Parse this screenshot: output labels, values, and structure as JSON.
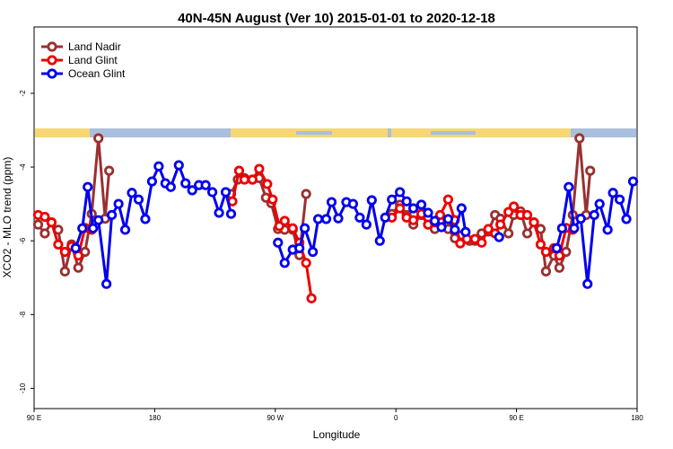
{
  "chart_data": {
    "type": "line",
    "title": "40N-45N August (Ver 10)   2015-01-01 to 2020-12-18",
    "x_label": "Longitude",
    "y_label": "XCO2 - MLO trend (ppm)",
    "xlim": [
      90,
      540
    ],
    "ylim": [
      -10.55,
      -0.2
    ],
    "xticks": [
      {
        "value": 90,
        "label": "90 E"
      },
      {
        "value": 180,
        "label": "180"
      },
      {
        "value": 270,
        "label": "90 W"
      },
      {
        "value": 360,
        "label": "0"
      },
      {
        "value": 450,
        "label": "90 E"
      },
      {
        "value": 540,
        "label": "180"
      }
    ],
    "yticks": [
      -2,
      -4,
      -6,
      -8,
      -10
    ],
    "legend": "top-left",
    "series": [
      {
        "name": "Land Nadir",
        "color": "#9b3030",
        "x": [
          93,
          98,
          103,
          108,
          113,
          118,
          123,
          128,
          133,
          138,
          143,
          146,
          null,
          237,
          242,
          247,
          253,
          258,
          263,
          267,
          272,
          277,
          283,
          288,
          293,
          null,
          357,
          363,
          368,
          373,
          379,
          384,
          389,
          393,
          399,
          404,
          409,
          415,
          419,
          424,
          429,
          434,
          438,
          444,
          448,
          453,
          458,
          463,
          468,
          472,
          478,
          482,
          487,
          492,
          497,
          502,
          505
        ],
        "values": [
          -5.56,
          -5.8,
          -5.5,
          -5.7,
          -6.83,
          -6.1,
          -6.73,
          -6.3,
          -5.27,
          -3.22,
          -5.4,
          -4.1,
          null,
          -4.73,
          -4.34,
          -4.3,
          -4.34,
          -4.3,
          -4.83,
          -4.98,
          -5.68,
          -5.7,
          -5.7,
          -6.39,
          -4.73,
          null,
          -5.27,
          -5.02,
          -5.3,
          -5.56,
          -5.3,
          -5.56,
          -5.68,
          -5.46,
          -5.68,
          -5.93,
          -5.85,
          -6.0,
          -6.0,
          -5.8,
          -5.75,
          -5.3,
          -5.4,
          -5.8,
          -5.3,
          -5.2,
          -5.8,
          -5.5,
          -5.68,
          -6.83,
          -6.4,
          -6.73,
          -6.3,
          -5.3,
          -3.22,
          -5.3,
          -4.1
        ]
      },
      {
        "name": "Land Glint",
        "color": "#ee0000",
        "x": [
          93,
          98,
          103,
          108,
          113,
          118,
          123,
          128,
          133,
          null,
          238,
          243,
          247,
          253,
          258,
          264,
          268,
          273,
          277,
          283,
          288,
          293,
          297,
          null,
          357,
          363,
          368,
          373,
          379,
          384,
          389,
          393,
          399,
          404,
          408,
          413,
          419,
          424,
          429,
          434,
          438,
          444,
          448,
          453,
          458,
          463,
          468,
          472,
          478,
          482,
          487,
          492
        ],
        "values": [
          -5.3,
          -5.35,
          -5.5,
          -6.1,
          -6.3,
          -6.15,
          -6.4,
          -5.65,
          -5.7,
          null,
          -4.93,
          -4.1,
          -4.34,
          -4.34,
          -4.05,
          -4.46,
          -4.88,
          -5.6,
          -5.46,
          -5.66,
          -6.05,
          -6.6,
          -7.56,
          null,
          -5.37,
          -5.12,
          -5.37,
          -5.44,
          -5.27,
          -5.56,
          -5.5,
          -5.3,
          -4.88,
          -5.44,
          -6.07,
          -5.95,
          -5.95,
          -6.05,
          -5.68,
          -5.8,
          -5.56,
          -5.22,
          -5.07,
          -5.3,
          -5.3,
          -5.5,
          -6.1,
          -6.3,
          -6.2,
          -6.4,
          -5.65,
          -5.7
        ]
      },
      {
        "name": "Ocean Glint",
        "color": "#0000ee",
        "x": [
          121,
          126,
          130,
          134,
          138,
          144,
          148,
          153,
          158,
          163,
          168,
          173,
          178,
          183,
          188,
          192,
          198,
          203,
          208,
          213,
          218,
          223,
          228,
          233,
          237,
          null,
          272,
          277,
          283,
          288,
          292,
          298,
          302,
          308,
          312,
          317,
          323,
          328,
          333,
          338,
          342,
          348,
          352,
          357,
          363,
          368,
          373,
          379,
          384,
          389,
          394,
          399,
          404,
          409,
          412,
          null,
          437,
          null,
          480,
          484,
          489,
          493,
          498,
          503,
          508,
          512,
          518,
          522,
          527,
          532,
          537
        ],
        "values": [
          -6.2,
          -5.66,
          -4.54,
          -5.66,
          -5.44,
          -7.17,
          -5.3,
          -5.0,
          -5.7,
          -4.7,
          -4.88,
          -5.41,
          -4.39,
          -3.98,
          -4.44,
          -4.54,
          -3.95,
          -4.44,
          -4.63,
          -4.49,
          -4.49,
          -4.68,
          -5.24,
          -4.68,
          -5.27,
          null,
          -6.05,
          -6.6,
          -6.24,
          -6.2,
          -5.66,
          -6.3,
          -5.41,
          -5.41,
          -4.95,
          -5.39,
          -4.95,
          -5.0,
          -5.37,
          -5.56,
          -4.9,
          -6.0,
          -5.37,
          -4.88,
          -4.68,
          -4.93,
          -5.12,
          -5.02,
          -5.24,
          -5.46,
          -5.63,
          -5.41,
          -5.7,
          -5.12,
          -5.76,
          null,
          -5.9,
          null,
          -6.2,
          -5.66,
          -4.54,
          -5.66,
          -5.4,
          -7.17,
          -5.3,
          -5.0,
          -5.7,
          -4.7,
          -4.88,
          -5.41,
          -4.39
        ]
      }
    ]
  }
}
